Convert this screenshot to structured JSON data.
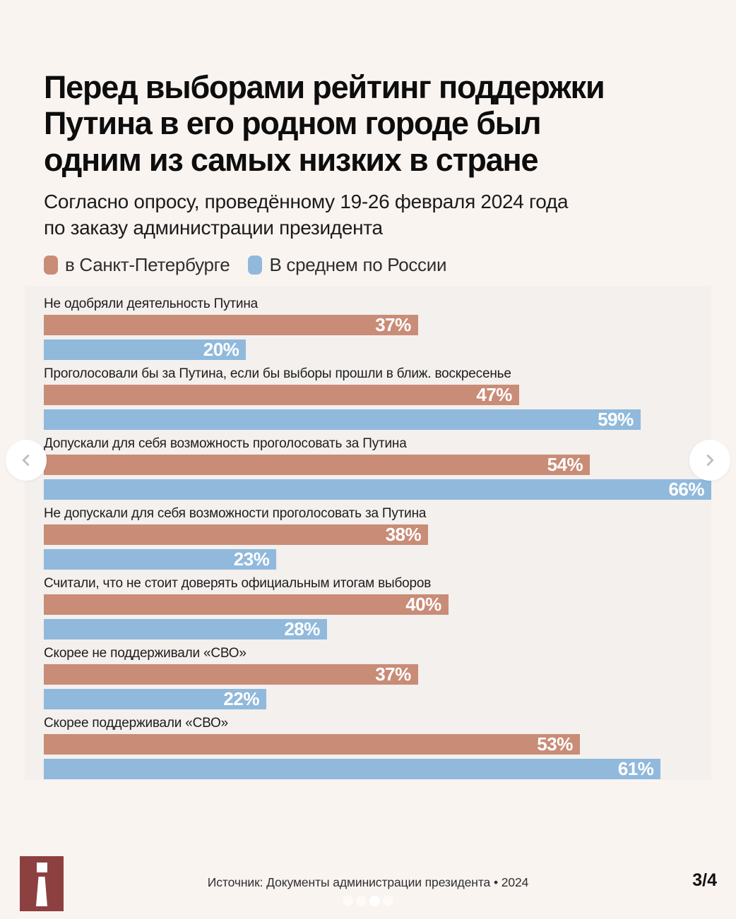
{
  "header": {
    "title_line1": "Перед выборами рейтинг поддержки",
    "title_line2": "Путина в его родном городе был",
    "title_line3": "одним из самых низких в стране",
    "subtitle_line1": "Согласно опросу, проведённому 19-26 февраля 2024 года",
    "subtitle_line2": "по заказу администрации президента"
  },
  "legend": {
    "items": [
      {
        "label": "в Санкт-Петербурге",
        "color": "#c98c77"
      },
      {
        "label": "В среднем по России",
        "color": "#90b9dc"
      }
    ]
  },
  "chart_data": {
    "type": "bar",
    "orientation": "horizontal",
    "unit": "%",
    "max_value": 66,
    "value_labels": "inside-right",
    "categories": [
      "Не одобряли деятельность Путина",
      "Проголосовали бы за Путина, если бы выборы прошли в ближ. воскресенье",
      "Допускали для себя возможность проголосовать за Путина",
      "Не допускали для себя возможности проголосовать за Путина",
      "Считали, что не стоит доверять официальным итогам выборов",
      "Скорее не поддерживали «СВО»",
      "Скорее поддерживали «СВО»"
    ],
    "series": [
      {
        "name": "в Санкт-Петербурге",
        "color": "#c98c77",
        "values": [
          37,
          47,
          54,
          38,
          40,
          37,
          53
        ]
      },
      {
        "name": "В среднем по России",
        "color": "#90b9dc",
        "values": [
          20,
          59,
          66,
          23,
          28,
          22,
          61
        ]
      }
    ]
  },
  "carousel": {
    "prev_icon": "chevron-left",
    "next_icon": "chevron-right",
    "dots_total": 4,
    "active_dot": 3
  },
  "footer": {
    "source": "Источник: Документы администрации президента • 2024",
    "page_indicator": "3/4",
    "logo": "istories-i-logo"
  },
  "colors": {
    "page_bg": "#faf4f1",
    "panel_bg": "#f3f0ee",
    "spb_bar": "#c98c77",
    "russia_bar": "#90b9dc",
    "logo_bg": "#8d4040",
    "chevron": "#bfbfbf"
  }
}
